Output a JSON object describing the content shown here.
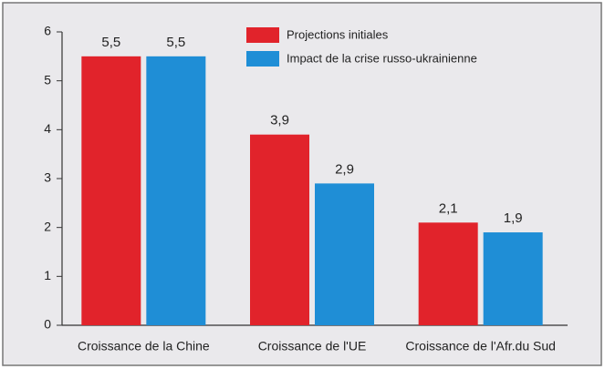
{
  "chart_data": {
    "type": "bar",
    "categories": [
      "Croissance de la Chine",
      "Croissance de l'UE",
      "Croissance de l'Afr.du Sud"
    ],
    "series": [
      {
        "name": "Projections initiales",
        "color": "#e1232b",
        "values": [
          5.5,
          3.9,
          2.1
        ],
        "value_labels": [
          "5,5",
          "3,9",
          "2,1"
        ]
      },
      {
        "name": "Impact de la crise russo-ukrainienne",
        "color": "#1f8ed6",
        "values": [
          5.5,
          2.9,
          1.9
        ],
        "value_labels": [
          "5,5",
          "2,9",
          "1,9"
        ]
      }
    ],
    "ylim": [
      0,
      6
    ],
    "yticks": [
      0,
      1,
      2,
      3,
      4,
      5,
      6
    ],
    "grid": false,
    "legend": "top"
  }
}
